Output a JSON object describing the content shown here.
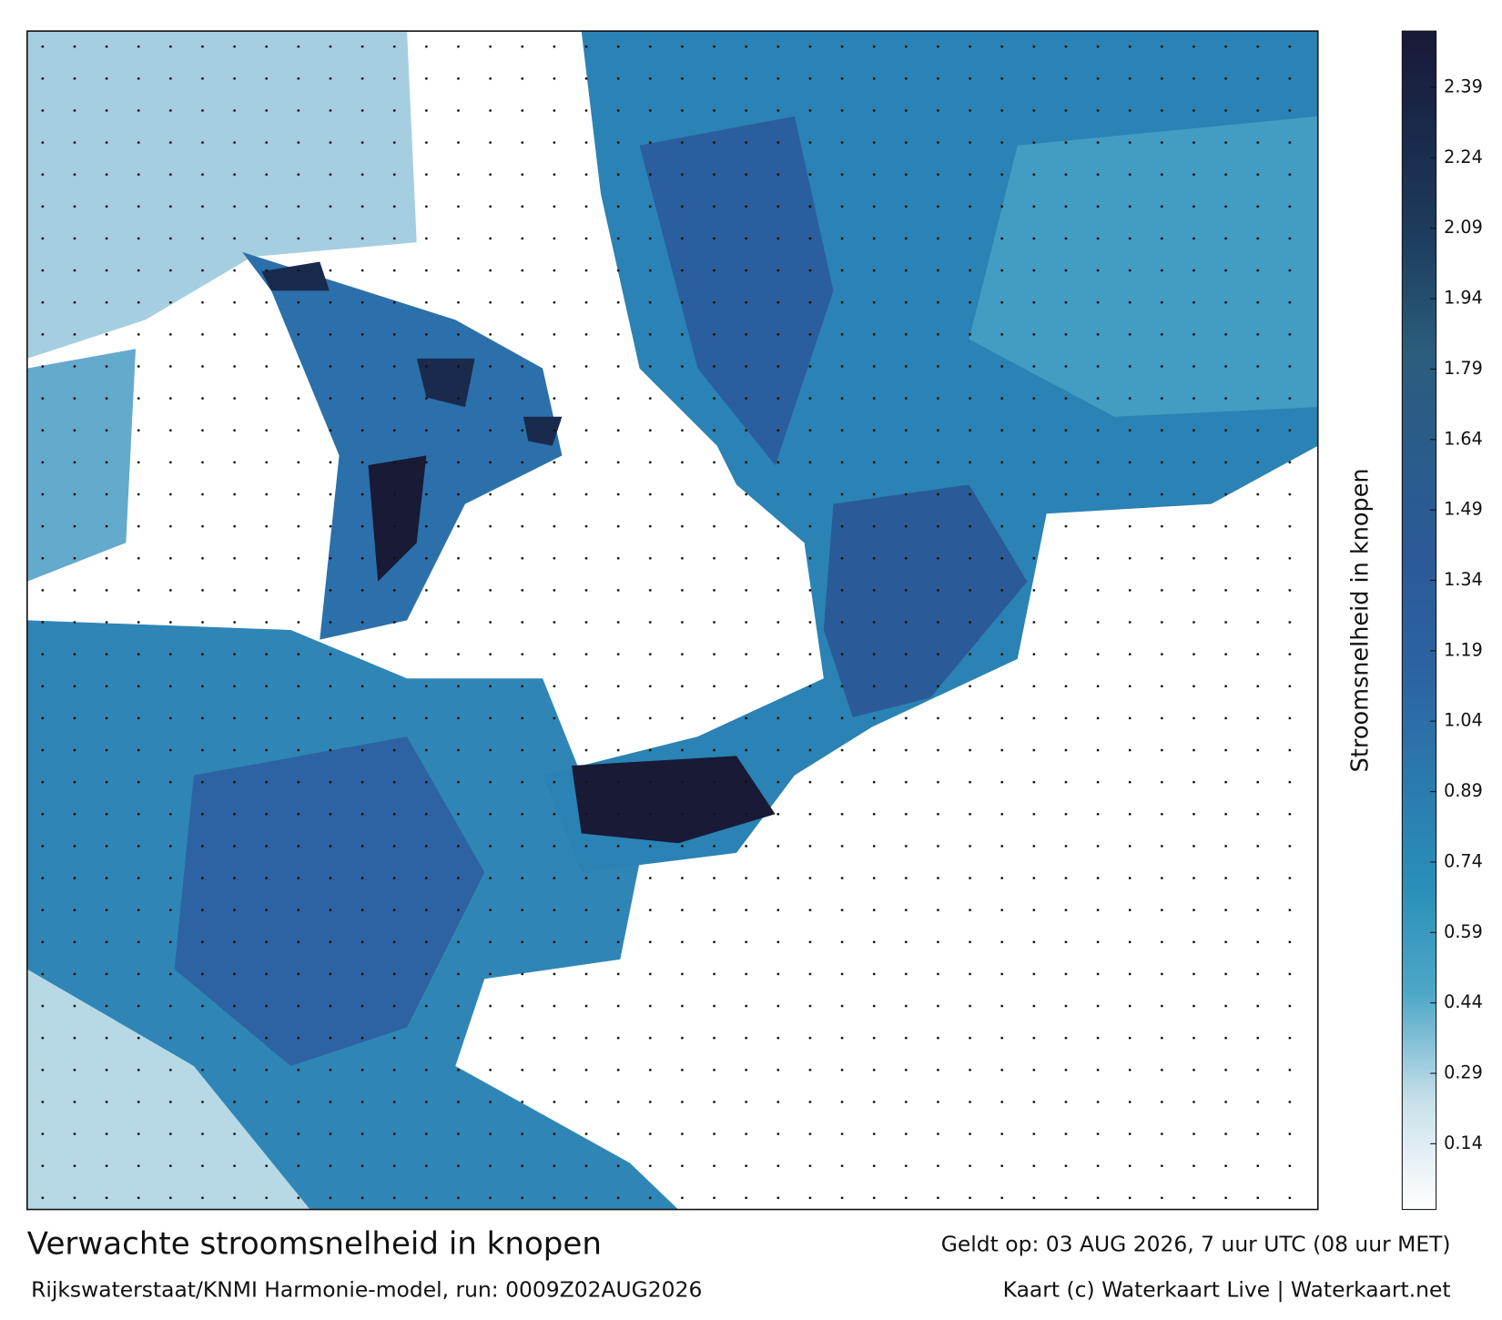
{
  "map": {
    "title": "Verwachte stroomsnelheid in knopen",
    "subtitle": "Rijkswaterstaat/KNMI Harmonie-model, run: 0009Z02AUG2026",
    "valid_time": "Geldt op: 03 AUG 2026, 7 uur UTC (08 uur MET)",
    "credit": "Kaart (c) Waterkaart Live | Waterkaart.net"
  },
  "chart_data": {
    "type": "colorbar",
    "label": "Stroomsnelheid in knopen",
    "ylim": [
      0,
      2.51
    ],
    "yticks": [
      0.14,
      0.29,
      0.44,
      0.59,
      0.74,
      0.89,
      1.04,
      1.19,
      1.34,
      1.49,
      1.64,
      1.79,
      1.94,
      2.09,
      2.24,
      2.39
    ],
    "colors": [
      "#ffffff",
      "#c9e1ea",
      "#4fa8c8",
      "#2a8fb8",
      "#2b7aad",
      "#2d63a2",
      "#2b5a98",
      "#2a5c8c",
      "#2b5d7c",
      "#1e3f60",
      "#1a2a4c",
      "#181a36"
    ]
  }
}
